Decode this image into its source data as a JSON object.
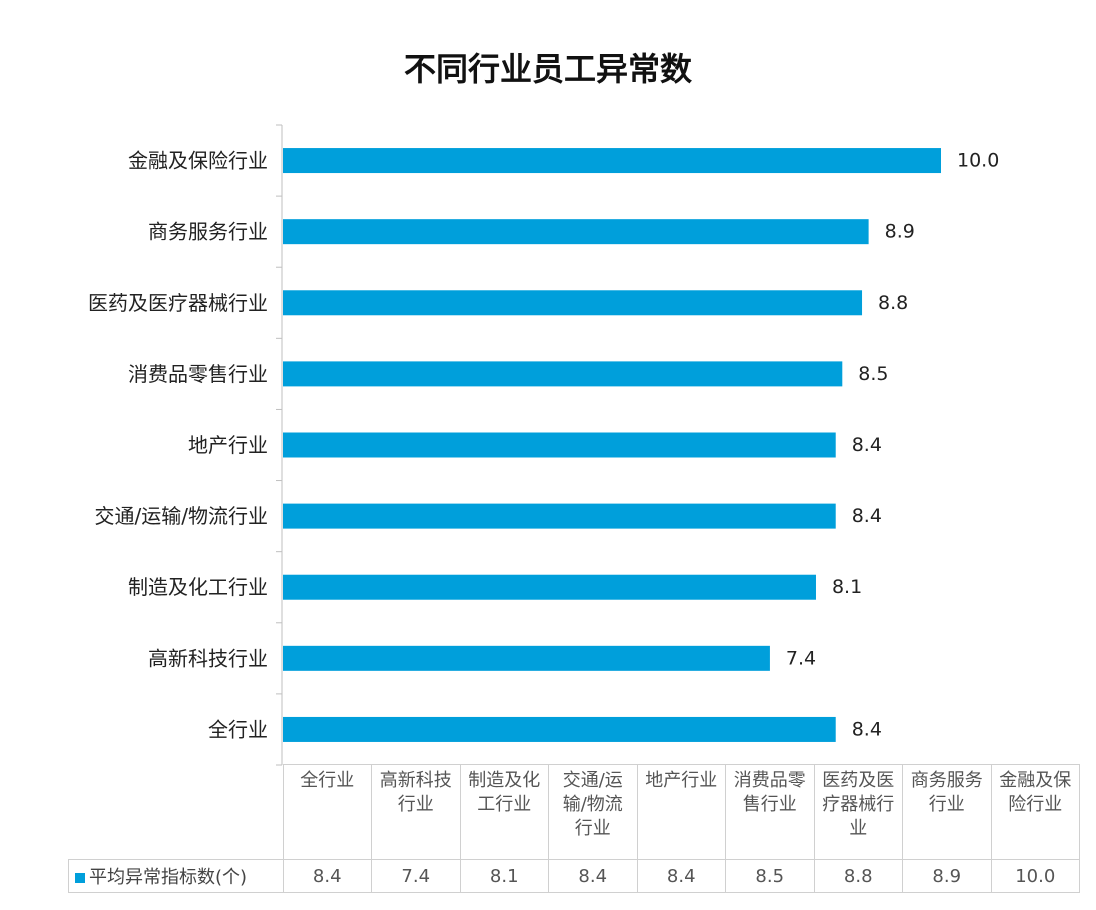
{
  "chart_data": {
    "type": "bar",
    "orientation": "horizontal",
    "title": "不同行业员工异常数",
    "categories": [
      "全行业",
      "高新科技行业",
      "制造及化工行业",
      "交通/运输/物流行业",
      "地产行业",
      "消费品零售行业",
      "医药及医疗器械行业",
      "商务服务行业",
      "金融及保险行业"
    ],
    "series": [
      {
        "name": "平均异常指标数(个)",
        "values": [
          8.4,
          7.4,
          8.1,
          8.4,
          8.4,
          8.5,
          8.8,
          8.9,
          10.0
        ],
        "color": "#009FDB"
      }
    ],
    "xlim": [
      0,
      10
    ],
    "grid": false,
    "legend": "data-table-left",
    "data_table": true
  }
}
